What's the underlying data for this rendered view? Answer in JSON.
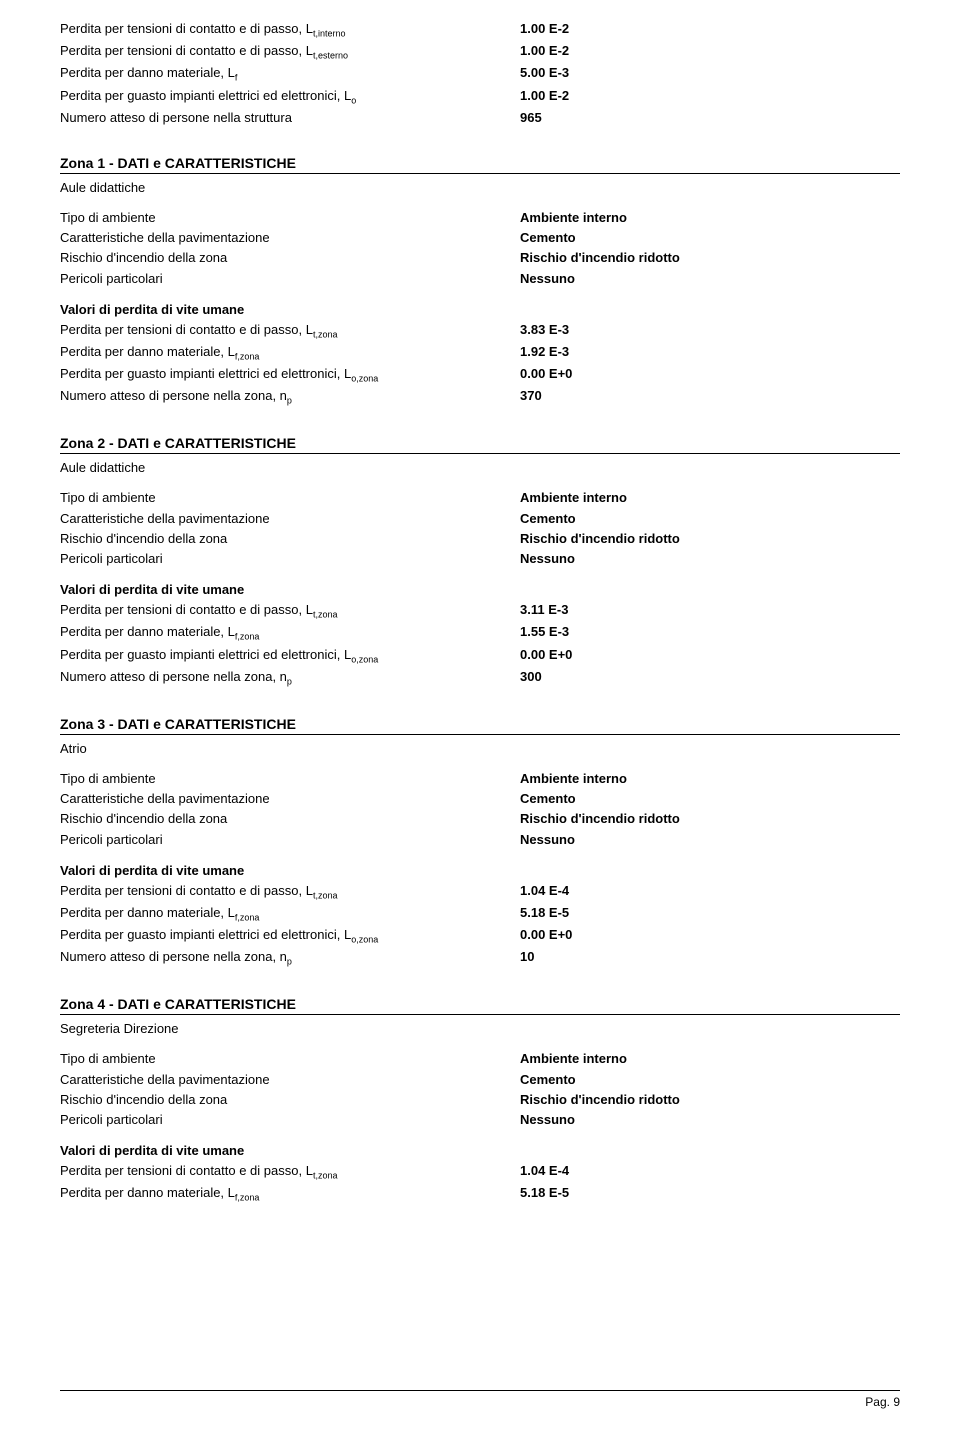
{
  "top_block": {
    "rows": [
      {
        "label": "Perdita per tensioni di contatto e di passo, L",
        "sub": "t,interno",
        "value": "1.00 E-2",
        "bold": true
      },
      {
        "label": "Perdita per tensioni di contatto e di passo, L",
        "sub": "t,esterno",
        "value": "1.00 E-2",
        "bold": true
      },
      {
        "label": "Perdita per danno materiale, L",
        "sub": "f",
        "value": "5.00 E-3",
        "bold": true
      },
      {
        "label": "Perdita per guasto impianti elettrici ed elettronici, L",
        "sub": "o",
        "value": "1.00 E-2",
        "bold": true
      },
      {
        "label": "Numero atteso di persone nella struttura",
        "sub": "",
        "value": "965",
        "bold": true
      }
    ]
  },
  "zones": [
    {
      "title": "Zona 1 - DATI e CARATTERISTICHE",
      "subtitle": "Aule didattiche",
      "props": [
        {
          "label": "Tipo di ambiente",
          "value": "Ambiente interno"
        },
        {
          "label": "Caratteristiche della pavimentazione",
          "value": "Cemento"
        },
        {
          "label": "Rischio d'incendio della zona",
          "value": "Rischio d'incendio ridotto"
        },
        {
          "label": "Pericoli particolari",
          "value": "Nessuno"
        }
      ],
      "valori_title": "Valori di perdita di vite umane",
      "valori": [
        {
          "label": "Perdita per tensioni di contatto e di passo, L",
          "sub": "t,zona",
          "value": "3.83 E-3",
          "bold": true
        },
        {
          "label": "Perdita per danno materiale, L",
          "sub": "f,zona",
          "value": "1.92 E-3",
          "bold": true
        },
        {
          "label": "Perdita per guasto impianti elettrici ed elettronici, L",
          "sub": "o,zona",
          "value": "0.00 E+0",
          "bold": true
        },
        {
          "label": "Numero atteso di persone nella zona, n",
          "sub": "p",
          "value": "370",
          "bold": true
        }
      ]
    },
    {
      "title": "Zona 2 - DATI e CARATTERISTICHE",
      "subtitle": "Aule didattiche",
      "props": [
        {
          "label": "Tipo di ambiente",
          "value": "Ambiente interno"
        },
        {
          "label": "Caratteristiche della pavimentazione",
          "value": "Cemento"
        },
        {
          "label": "Rischio d'incendio della zona",
          "value": "Rischio d'incendio ridotto"
        },
        {
          "label": "Pericoli particolari",
          "value": "Nessuno"
        }
      ],
      "valori_title": "Valori di perdita di vite umane",
      "valori": [
        {
          "label": "Perdita per tensioni di contatto e di passo, L",
          "sub": "t,zona",
          "value": "3.11 E-3",
          "bold": true
        },
        {
          "label": "Perdita per danno materiale, L",
          "sub": "f,zona",
          "value": "1.55 E-3",
          "bold": true
        },
        {
          "label": "Perdita per guasto impianti elettrici ed elettronici, L",
          "sub": "o,zona",
          "value": "0.00 E+0",
          "bold": true
        },
        {
          "label": "Numero atteso di persone nella zona, n",
          "sub": "p",
          "value": "300",
          "bold": true
        }
      ]
    },
    {
      "title": "Zona 3 - DATI e CARATTERISTICHE",
      "subtitle": "Atrio",
      "props": [
        {
          "label": "Tipo di ambiente",
          "value": "Ambiente interno"
        },
        {
          "label": "Caratteristiche della pavimentazione",
          "value": "Cemento"
        },
        {
          "label": "Rischio d'incendio della zona",
          "value": "Rischio d'incendio ridotto"
        },
        {
          "label": "Pericoli particolari",
          "value": "Nessuno"
        }
      ],
      "valori_title": "Valori di perdita di vite umane",
      "valori": [
        {
          "label": "Perdita per tensioni di contatto e di passo, L",
          "sub": "t,zona",
          "value": "1.04 E-4",
          "bold": true
        },
        {
          "label": "Perdita per danno materiale, L",
          "sub": "f,zona",
          "value": "5.18 E-5",
          "bold": true
        },
        {
          "label": "Perdita per guasto impianti elettrici ed elettronici, L",
          "sub": "o,zona",
          "value": "0.00 E+0",
          "bold": true
        },
        {
          "label": "Numero atteso di persone nella zona, n",
          "sub": "p",
          "value": "10",
          "bold": true
        }
      ]
    },
    {
      "title": "Zona 4 - DATI e CARATTERISTICHE",
      "subtitle": "Segreteria Direzione",
      "props": [
        {
          "label": "Tipo di ambiente",
          "value": "Ambiente interno"
        },
        {
          "label": "Caratteristiche della pavimentazione",
          "value": "Cemento"
        },
        {
          "label": "Rischio d'incendio della zona",
          "value": "Rischio d'incendio ridotto"
        },
        {
          "label": "Pericoli particolari",
          "value": "Nessuno"
        }
      ],
      "valori_title": "Valori di perdita di vite umane",
      "valori": [
        {
          "label": "Perdita per tensioni di contatto e di passo, L",
          "sub": "t,zona",
          "value": "1.04 E-4",
          "bold": true
        },
        {
          "label": "Perdita per danno materiale, L",
          "sub": "f,zona",
          "value": "5.18 E-5",
          "bold": true
        }
      ]
    }
  ],
  "page_label": "Pag.  9"
}
